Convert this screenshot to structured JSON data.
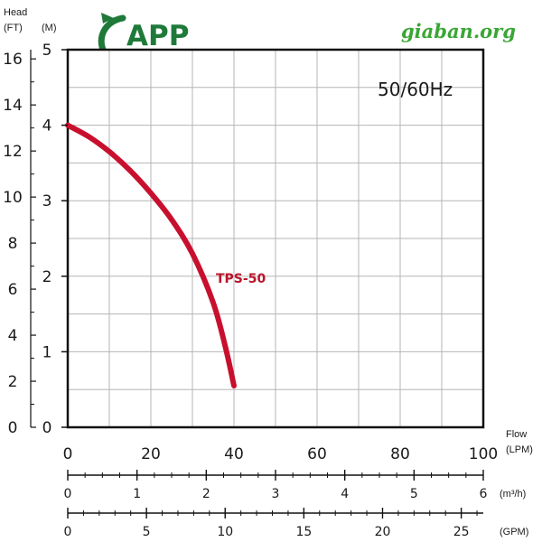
{
  "header": {
    "head_label": "Head",
    "ft_label": "(FT)",
    "m_label": "(M)",
    "logo_text": "APP",
    "site_text": "giaban.org"
  },
  "chart_data": {
    "type": "line",
    "annotation": "50/60Hz",
    "grid": true,
    "x_primary": {
      "label": "Flow",
      "unit": "(LPM)",
      "range": [
        0,
        100
      ],
      "ticks": [
        0,
        20,
        40,
        60,
        80,
        100
      ]
    },
    "x_secondary": [
      {
        "unit": "(m³/h)",
        "range": [
          0,
          6
        ],
        "ticks": [
          0,
          1,
          2,
          3,
          4,
          5,
          6
        ]
      },
      {
        "unit": "(GPM)",
        "range": [
          0,
          26.4
        ],
        "ticks": [
          0,
          5,
          10,
          15,
          20,
          25
        ]
      }
    ],
    "y_primary": {
      "label": "Head",
      "unit": "(M)",
      "range": [
        0,
        5
      ],
      "ticks": [
        0,
        1,
        2,
        3,
        4,
        5
      ]
    },
    "y_secondary": {
      "unit": "(FT)",
      "range": [
        0,
        16.4
      ],
      "ticks": [
        0,
        2,
        4,
        6,
        8,
        10,
        12,
        14,
        16
      ]
    },
    "series": [
      {
        "name": "TPS-50",
        "color": "#c8102e",
        "x": [
          0,
          5,
          10,
          15,
          20,
          25,
          30,
          35,
          38,
          40
        ],
        "y": [
          4.0,
          3.85,
          3.65,
          3.4,
          3.1,
          2.75,
          2.3,
          1.65,
          1.05,
          0.55
        ]
      }
    ]
  }
}
